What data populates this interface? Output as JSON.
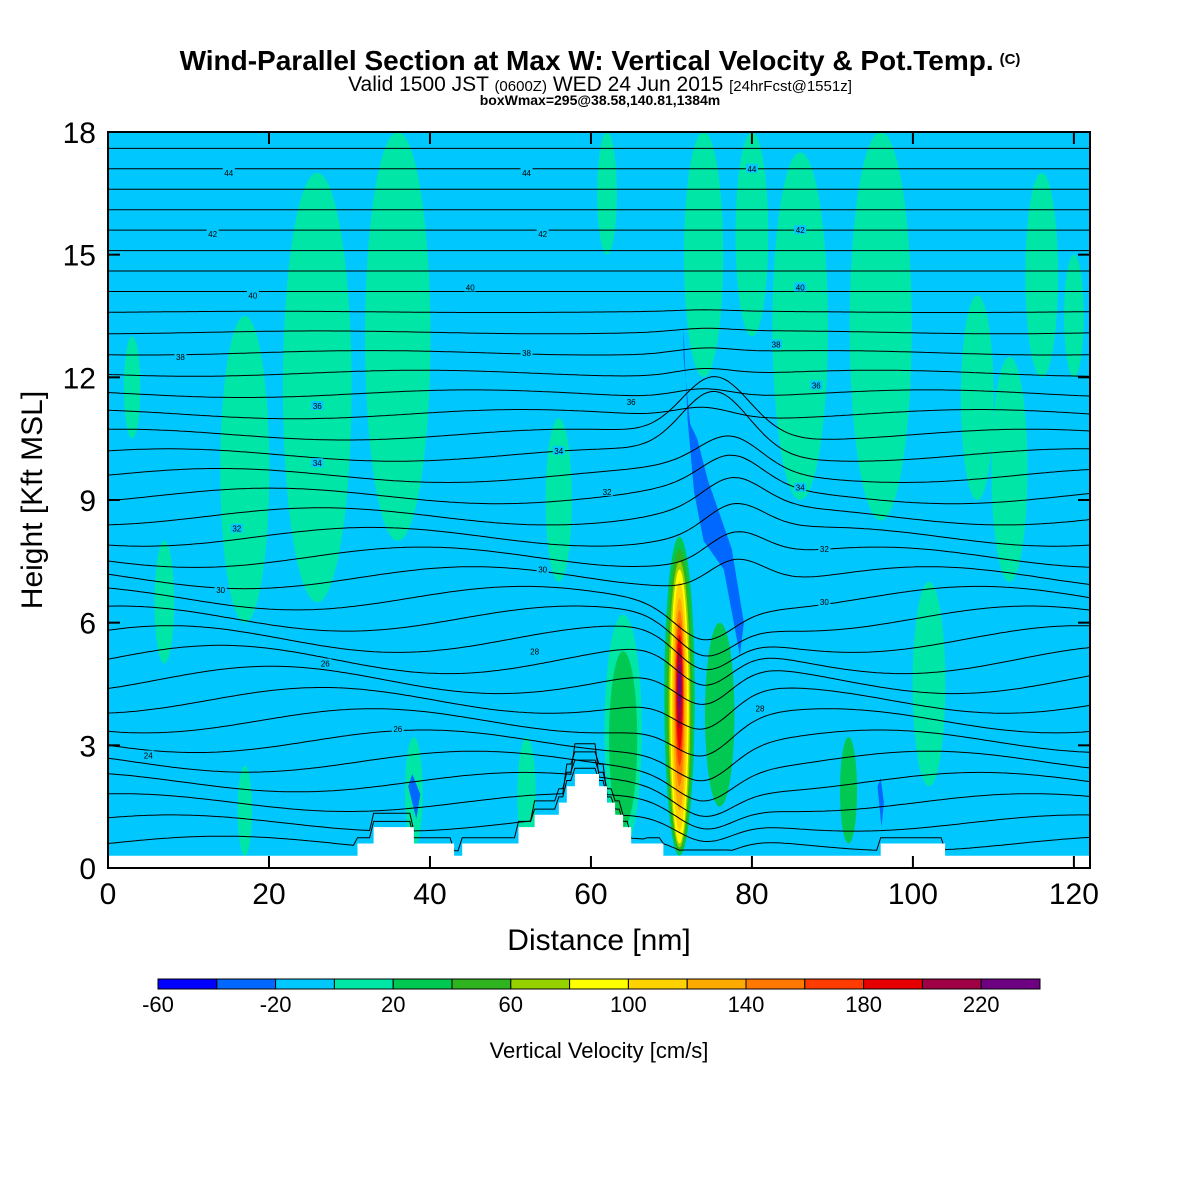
{
  "header": {
    "title": "Wind-Parallel Section at Max W: Vertical Velocity & Pot.Temp.",
    "title_tag": "(C)",
    "subtitle_a": "Valid 1500 JST",
    "subtitle_b": "(0600Z)",
    "subtitle_c": "WED 24 Jun 2015",
    "subtitle_d": "[24hrFcst@1551z]",
    "subtitle2": "boxWmax=295@38.58,140.81,1384m"
  },
  "chart_data": {
    "type": "heatmap",
    "xlabel": "Distance [nm]",
    "ylabel": "Height [Kft MSL]",
    "xlim": [
      0,
      122
    ],
    "ylim": [
      0,
      18
    ],
    "xticks": [
      "0",
      "20",
      "40",
      "60",
      "80",
      "100",
      "120"
    ],
    "yticks": [
      "0",
      "3",
      "6",
      "9",
      "12",
      "15",
      "18"
    ],
    "grid": false,
    "colorbar": {
      "label": "Vertical Velocity [cm/s]",
      "bins": [
        -60,
        -40,
        -20,
        0,
        20,
        40,
        60,
        80,
        100,
        120,
        140,
        160,
        180,
        200,
        220,
        240
      ],
      "tick_labels": [
        "-60",
        "-20",
        "20",
        "60",
        "100",
        "140",
        "180",
        "220"
      ],
      "colors": [
        "#0000ff",
        "#0068ff",
        "#00c8ff",
        "#00e6a6",
        "#00c850",
        "#2eb41e",
        "#96d200",
        "#ffff00",
        "#ffd200",
        "#ffaa00",
        "#ff7800",
        "#ff3c00",
        "#e60000",
        "#a00046",
        "#6e0082"
      ]
    },
    "background_color": "#00c8ff",
    "updraft_core": {
      "x_nm": 71,
      "height_kft": [
        0.3,
        8.0
      ],
      "max_cms": 240,
      "bands": [
        {
          "min_cms": 20,
          "width_nm": 3.8,
          "bottom_kft": 0.3,
          "top_kft": 8.1,
          "color": "#00c850"
        },
        {
          "min_cms": 40,
          "width_nm": 3.2,
          "bottom_kft": 0.4,
          "top_kft": 7.8,
          "color": "#2eb41e"
        },
        {
          "min_cms": 60,
          "width_nm": 2.7,
          "bottom_kft": 0.5,
          "top_kft": 7.5,
          "color": "#96d200"
        },
        {
          "min_cms": 80,
          "width_nm": 2.3,
          "bottom_kft": 0.6,
          "top_kft": 7.3,
          "color": "#ffff00"
        },
        {
          "min_cms": 100,
          "width_nm": 1.9,
          "bottom_kft": 0.9,
          "top_kft": 7.0,
          "color": "#ffd200"
        },
        {
          "min_cms": 120,
          "width_nm": 1.5,
          "bottom_kft": 1.4,
          "top_kft": 6.6,
          "color": "#ffaa00"
        },
        {
          "min_cms": 140,
          "width_nm": 1.2,
          "bottom_kft": 2.0,
          "top_kft": 6.3,
          "color": "#ff7800"
        },
        {
          "min_cms": 160,
          "width_nm": 1.0,
          "bottom_kft": 2.5,
          "top_kft": 6.0,
          "color": "#ff3c00"
        },
        {
          "min_cms": 180,
          "width_nm": 0.8,
          "bottom_kft": 2.9,
          "top_kft": 5.7,
          "color": "#e60000"
        },
        {
          "min_cms": 200,
          "width_nm": 0.6,
          "bottom_kft": 3.4,
          "top_kft": 5.4,
          "color": "#a00046"
        },
        {
          "min_cms": 220,
          "width_nm": 0.4,
          "bottom_kft": 3.9,
          "top_kft": 5.0,
          "color": "#6e0082"
        }
      ]
    },
    "secondary_updrafts": [
      {
        "x_nm": 3,
        "bottom_kft": 10.5,
        "top_kft": 13,
        "color": "#00e6a6"
      },
      {
        "x_nm": 7,
        "bottom_kft": 5,
        "top_kft": 8,
        "color": "#00e6a6"
      },
      {
        "x_nm": 17,
        "bottom_kft": 6,
        "top_kft": 13.5,
        "color": "#00e6a6"
      },
      {
        "x_nm": 17,
        "bottom_kft": 0.3,
        "top_kft": 2.5,
        "color": "#00e6a6"
      },
      {
        "x_nm": 26,
        "bottom_kft": 6.5,
        "top_kft": 17,
        "color": "#00e6a6"
      },
      {
        "x_nm": 36,
        "bottom_kft": 8,
        "top_kft": 18,
        "color": "#00e6a6"
      },
      {
        "x_nm": 38,
        "bottom_kft": 0.5,
        "top_kft": 3.2,
        "color": "#00e6a6"
      },
      {
        "x_nm": 52,
        "bottom_kft": 0.4,
        "top_kft": 3.2,
        "color": "#00e6a6"
      },
      {
        "x_nm": 56,
        "bottom_kft": 7,
        "top_kft": 11,
        "color": "#00e6a6"
      },
      {
        "x_nm": 62,
        "bottom_kft": 15,
        "top_kft": 18,
        "color": "#00e6a6"
      },
      {
        "x_nm": 64,
        "bottom_kft": 0.5,
        "top_kft": 6.2,
        "color": "#00e6a6"
      },
      {
        "x_nm": 64,
        "bottom_kft": 1,
        "top_kft": 5.3,
        "color": "#00c850"
      },
      {
        "x_nm": 74,
        "bottom_kft": 12,
        "top_kft": 18,
        "color": "#00e6a6"
      },
      {
        "x_nm": 76,
        "bottom_kft": 1.5,
        "top_kft": 6,
        "color": "#00c850"
      },
      {
        "x_nm": 80,
        "bottom_kft": 13,
        "top_kft": 18,
        "color": "#00e6a6"
      },
      {
        "x_nm": 86,
        "bottom_kft": 9,
        "top_kft": 17.5,
        "color": "#00e6a6"
      },
      {
        "x_nm": 92,
        "bottom_kft": 0.6,
        "top_kft": 3.2,
        "color": "#00c850"
      },
      {
        "x_nm": 96,
        "bottom_kft": 8.5,
        "top_kft": 18,
        "color": "#00e6a6"
      },
      {
        "x_nm": 102,
        "bottom_kft": 2,
        "top_kft": 7,
        "color": "#00e6a6"
      },
      {
        "x_nm": 108,
        "bottom_kft": 9,
        "top_kft": 14,
        "color": "#00e6a6"
      },
      {
        "x_nm": 112,
        "bottom_kft": 7,
        "top_kft": 12.5,
        "color": "#00e6a6"
      },
      {
        "x_nm": 116,
        "bottom_kft": 12,
        "top_kft": 17,
        "color": "#00e6a6"
      },
      {
        "x_nm": 120,
        "bottom_kft": 12,
        "top_kft": 15,
        "color": "#00e6a6"
      }
    ],
    "downdrafts": [
      {
        "points": [
          [
            71.5,
            13.2
          ],
          [
            72.0,
            11.0
          ],
          [
            73.5,
            9.2
          ],
          [
            74.0,
            8.8
          ],
          [
            72.5,
            10.5
          ],
          [
            71.5,
            12.5
          ]
        ],
        "color": "#0068ff"
      },
      {
        "points": [
          [
            72.0,
            11.0
          ],
          [
            72.8,
            9.2
          ],
          [
            74.0,
            8.0
          ],
          [
            76.5,
            7.3
          ],
          [
            78.5,
            5.2
          ],
          [
            79.0,
            6.0
          ],
          [
            77.5,
            7.8
          ],
          [
            74.5,
            9.5
          ],
          [
            73.2,
            10.5
          ]
        ],
        "color": "#0068ff"
      },
      {
        "points": [
          [
            37.3,
            2.0
          ],
          [
            38.3,
            1.2
          ],
          [
            38.8,
            1.8
          ],
          [
            37.8,
            2.3
          ]
        ],
        "color": "#0068ff"
      },
      {
        "points": [
          [
            95.6,
            2.0
          ],
          [
            96.1,
            1.0
          ],
          [
            96.4,
            1.6
          ],
          [
            96.0,
            2.2
          ]
        ],
        "color": "#0068ff"
      }
    ],
    "terrain_kft": [
      [
        0,
        0.3
      ],
      [
        6,
        0.3
      ],
      [
        6,
        0.3
      ],
      [
        31,
        0.3
      ],
      [
        31,
        0.6
      ],
      [
        33,
        0.6
      ],
      [
        33,
        1.0
      ],
      [
        38,
        1.0
      ],
      [
        38,
        0.6
      ],
      [
        43,
        0.6
      ],
      [
        43,
        0.3
      ],
      [
        44,
        0.3
      ],
      [
        44,
        0.6
      ],
      [
        51,
        0.6
      ],
      [
        51,
        1.0
      ],
      [
        53,
        1.0
      ],
      [
        53,
        1.3
      ],
      [
        56,
        1.3
      ],
      [
        56,
        1.6
      ],
      [
        57,
        1.6
      ],
      [
        57,
        2.0
      ],
      [
        58,
        2.0
      ],
      [
        58,
        2.3
      ],
      [
        61,
        2.3
      ],
      [
        61,
        2.0
      ],
      [
        62,
        2.0
      ],
      [
        62,
        1.6
      ],
      [
        63,
        1.6
      ],
      [
        63,
        1.3
      ],
      [
        64,
        1.3
      ],
      [
        64,
        1.0
      ],
      [
        65,
        1.0
      ],
      [
        65,
        0.6
      ],
      [
        69,
        0.6
      ],
      [
        69,
        0.3
      ],
      [
        96,
        0.3
      ],
      [
        96,
        0.6
      ],
      [
        104,
        0.6
      ],
      [
        104,
        0.3
      ],
      [
        122,
        0.3
      ]
    ],
    "theta_contours": {
      "base_kft": 0.6,
      "spacing_kft": 0.5,
      "count": 35,
      "label_values": [
        "24",
        "26",
        "28",
        "30",
        "32",
        "34",
        "36",
        "38",
        "40",
        "42",
        "44"
      ],
      "labels": [
        {
          "text": "24",
          "x_nm": 5,
          "y_kft": 2.75
        },
        {
          "text": "26",
          "x_nm": 36,
          "y_kft": 3.4
        },
        {
          "text": "26",
          "x_nm": 27,
          "y_kft": 5.0
        },
        {
          "text": "28",
          "x_nm": 53,
          "y_kft": 5.3
        },
        {
          "text": "28",
          "x_nm": 81,
          "y_kft": 3.9
        },
        {
          "text": "30",
          "x_nm": 14,
          "y_kft": 6.8
        },
        {
          "text": "30",
          "x_nm": 54,
          "y_kft": 7.3
        },
        {
          "text": "30",
          "x_nm": 89,
          "y_kft": 6.5
        },
        {
          "text": "32",
          "x_nm": 16,
          "y_kft": 8.3
        },
        {
          "text": "32",
          "x_nm": 62,
          "y_kft": 9.2
        },
        {
          "text": "32",
          "x_nm": 89,
          "y_kft": 7.8
        },
        {
          "text": "34",
          "x_nm": 26,
          "y_kft": 9.9
        },
        {
          "text": "34",
          "x_nm": 56,
          "y_kft": 10.2
        },
        {
          "text": "34",
          "x_nm": 86,
          "y_kft": 9.3
        },
        {
          "text": "36",
          "x_nm": 26,
          "y_kft": 11.3
        },
        {
          "text": "36",
          "x_nm": 65,
          "y_kft": 11.4
        },
        {
          "text": "36",
          "x_nm": 88,
          "y_kft": 11.8
        },
        {
          "text": "38",
          "x_nm": 9,
          "y_kft": 12.5
        },
        {
          "text": "38",
          "x_nm": 52,
          "y_kft": 12.6
        },
        {
          "text": "38",
          "x_nm": 83,
          "y_kft": 12.8
        },
        {
          "text": "40",
          "x_nm": 18,
          "y_kft": 14.0
        },
        {
          "text": "40",
          "x_nm": 45,
          "y_kft": 14.2
        },
        {
          "text": "40",
          "x_nm": 86,
          "y_kft": 14.2
        },
        {
          "text": "42",
          "x_nm": 13,
          "y_kft": 15.5
        },
        {
          "text": "42",
          "x_nm": 54,
          "y_kft": 15.5
        },
        {
          "text": "42",
          "x_nm": 86,
          "y_kft": 15.6
        },
        {
          "text": "44",
          "x_nm": 15,
          "y_kft": 17.0
        },
        {
          "text": "44",
          "x_nm": 52,
          "y_kft": 17.0
        },
        {
          "text": "44",
          "x_nm": 80,
          "y_kft": 17.1
        }
      ]
    }
  }
}
